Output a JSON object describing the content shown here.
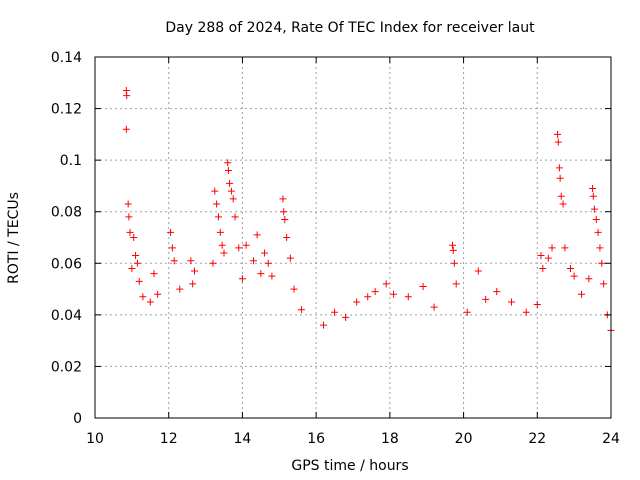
{
  "chart_data": {
    "type": "scatter",
    "title": "Day 288 of 2024, Rate Of TEC Index for receiver laut",
    "xlabel": "GPS time / hours",
    "ylabel": "ROTI / TECUs",
    "xlim": [
      10,
      24
    ],
    "ylim": [
      0,
      0.14
    ],
    "xticks": [
      10,
      12,
      14,
      16,
      18,
      20,
      22,
      24
    ],
    "yticks": [
      0,
      0.02,
      0.04,
      0.06,
      0.08,
      0.1,
      0.12,
      0.14
    ],
    "ytick_labels": [
      "0",
      "0.02",
      "0.04",
      "0.06",
      "0.08",
      "0.1",
      "0.12",
      "0.14"
    ],
    "grid": true,
    "marker": "+",
    "marker_color": "#ff0000",
    "series": [
      {
        "name": "ROTI",
        "points": [
          [
            10.85,
            0.127
          ],
          [
            10.86,
            0.125
          ],
          [
            10.85,
            0.112
          ],
          [
            10.9,
            0.083
          ],
          [
            10.92,
            0.078
          ],
          [
            10.95,
            0.072
          ],
          [
            11.05,
            0.07
          ],
          [
            11.1,
            0.063
          ],
          [
            11.15,
            0.06
          ],
          [
            11.0,
            0.058
          ],
          [
            11.2,
            0.053
          ],
          [
            11.3,
            0.047
          ],
          [
            11.5,
            0.045
          ],
          [
            11.6,
            0.056
          ],
          [
            11.7,
            0.048
          ],
          [
            12.05,
            0.072
          ],
          [
            12.1,
            0.066
          ],
          [
            12.15,
            0.061
          ],
          [
            12.3,
            0.05
          ],
          [
            12.6,
            0.061
          ],
          [
            12.7,
            0.057
          ],
          [
            12.65,
            0.052
          ],
          [
            13.25,
            0.088
          ],
          [
            13.3,
            0.083
          ],
          [
            13.35,
            0.078
          ],
          [
            13.4,
            0.072
          ],
          [
            13.45,
            0.067
          ],
          [
            13.5,
            0.064
          ],
          [
            13.2,
            0.06
          ],
          [
            13.6,
            0.099
          ],
          [
            13.62,
            0.096
          ],
          [
            13.65,
            0.091
          ],
          [
            13.7,
            0.088
          ],
          [
            13.75,
            0.085
          ],
          [
            13.8,
            0.078
          ],
          [
            13.9,
            0.066
          ],
          [
            14.0,
            0.054
          ],
          [
            14.1,
            0.067
          ],
          [
            14.3,
            0.061
          ],
          [
            14.4,
            0.071
          ],
          [
            14.5,
            0.056
          ],
          [
            14.6,
            0.064
          ],
          [
            14.7,
            0.06
          ],
          [
            14.8,
            0.055
          ],
          [
            15.1,
            0.085
          ],
          [
            15.12,
            0.08
          ],
          [
            15.15,
            0.077
          ],
          [
            15.2,
            0.07
          ],
          [
            15.3,
            0.062
          ],
          [
            15.4,
            0.05
          ],
          [
            15.6,
            0.042
          ],
          [
            16.2,
            0.036
          ],
          [
            16.5,
            0.041
          ],
          [
            16.8,
            0.039
          ],
          [
            17.1,
            0.045
          ],
          [
            17.4,
            0.047
          ],
          [
            17.6,
            0.049
          ],
          [
            17.9,
            0.052
          ],
          [
            18.1,
            0.048
          ],
          [
            18.5,
            0.047
          ],
          [
            18.9,
            0.051
          ],
          [
            19.2,
            0.043
          ],
          [
            19.7,
            0.067
          ],
          [
            19.72,
            0.065
          ],
          [
            19.75,
            0.06
          ],
          [
            19.8,
            0.052
          ],
          [
            20.1,
            0.041
          ],
          [
            20.4,
            0.057
          ],
          [
            20.6,
            0.046
          ],
          [
            20.9,
            0.049
          ],
          [
            21.3,
            0.045
          ],
          [
            21.7,
            0.041
          ],
          [
            22.0,
            0.044
          ],
          [
            22.1,
            0.063
          ],
          [
            22.15,
            0.058
          ],
          [
            22.3,
            0.062
          ],
          [
            22.4,
            0.066
          ],
          [
            22.55,
            0.11
          ],
          [
            22.57,
            0.107
          ],
          [
            22.6,
            0.097
          ],
          [
            22.62,
            0.093
          ],
          [
            22.65,
            0.086
          ],
          [
            22.7,
            0.083
          ],
          [
            22.75,
            0.066
          ],
          [
            22.9,
            0.058
          ],
          [
            23.0,
            0.055
          ],
          [
            23.2,
            0.048
          ],
          [
            23.4,
            0.054
          ],
          [
            23.5,
            0.089
          ],
          [
            23.52,
            0.086
          ],
          [
            23.55,
            0.081
          ],
          [
            23.6,
            0.077
          ],
          [
            23.65,
            0.072
          ],
          [
            23.7,
            0.066
          ],
          [
            23.75,
            0.06
          ],
          [
            23.8,
            0.052
          ],
          [
            23.9,
            0.04
          ],
          [
            24.0,
            0.034
          ]
        ]
      }
    ]
  }
}
